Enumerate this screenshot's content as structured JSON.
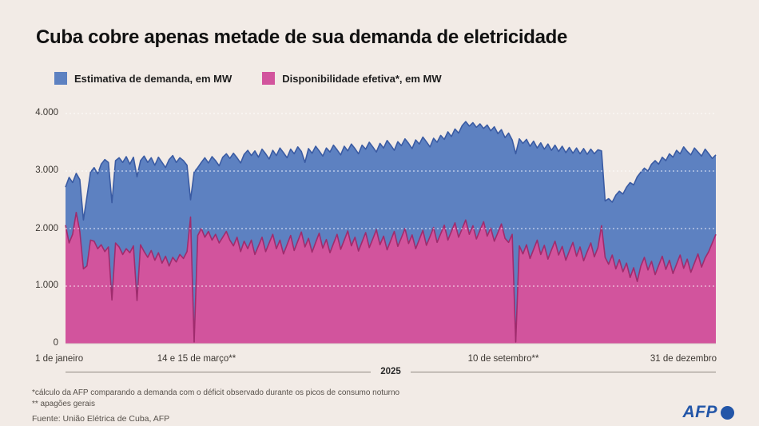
{
  "title": "Cuba cobre apenas metade de sua demanda de eletricidade",
  "legend": [
    {
      "label": "Estimativa de demanda, em MW",
      "color": "#5d81c1"
    },
    {
      "label": "Disponibilidade efetiva*, em MW",
      "color": "#d2549d"
    }
  ],
  "y_axis": {
    "ticks": [
      "4.000",
      "3.000",
      "2.000",
      "1.000",
      "0"
    ]
  },
  "x_axis": {
    "labels": {
      "jan": "1 de janeiro",
      "mar": "14 e 15 de março**",
      "sep": "10 de setembro**",
      "dez": "31 de dezembro"
    },
    "year_label": "2025"
  },
  "footnotes": [
    "*cálculo da AFP comparando a demanda com o déficit observado durante os picos de consumo noturno",
    "** apagões gerais"
  ],
  "source": "Fuente: União Elétrica de Cuba, AFP",
  "logo": {
    "text": "AFP",
    "color": "#2356a8"
  },
  "colors": {
    "background": "#f2ebe6",
    "demand_fill": "#5d81c1",
    "demand_line": "#3a5ba3",
    "availability_fill": "#d2549d",
    "availability_line": "#9f2c6d",
    "gridline": "rgba(255,255,255,0.85)",
    "baseline": "#d8d1ca"
  },
  "chart_data": {
    "type": "area",
    "title": "Cuba cobre apenas metade de sua demanda de eletricidade",
    "x_unit": "dia do ano de 2025",
    "x_start": 1,
    "x_step": 2,
    "x_end": 365,
    "ylim": [
      0,
      4000
    ],
    "grid": true,
    "legend_position": "top",
    "annotations": [
      {
        "day": 73,
        "label": "14 e 15 de março**",
        "note": "apagões gerais"
      },
      {
        "day": 253,
        "label": "10 de setembro**",
        "note": "apagões gerais"
      }
    ],
    "series": [
      {
        "name": "Estimativa de demanda, em MW",
        "values": [
          2720,
          2890,
          2800,
          2960,
          2850,
          2150,
          2550,
          2980,
          3060,
          2950,
          3120,
          3200,
          3150,
          2450,
          3180,
          3230,
          3150,
          3250,
          3120,
          3240,
          2900,
          3180,
          3260,
          3150,
          3230,
          3100,
          3240,
          3150,
          3060,
          3200,
          3270,
          3150,
          3230,
          3180,
          3100,
          2500,
          2980,
          3060,
          3150,
          3230,
          3140,
          3250,
          3180,
          3090,
          3240,
          3300,
          3220,
          3310,
          3230,
          3140,
          3290,
          3360,
          3270,
          3350,
          3240,
          3380,
          3300,
          3210,
          3360,
          3270,
          3400,
          3320,
          3230,
          3380,
          3300,
          3420,
          3340,
          3150,
          3390,
          3310,
          3430,
          3350,
          3260,
          3400,
          3330,
          3450,
          3370,
          3280,
          3430,
          3350,
          3470,
          3390,
          3300,
          3450,
          3380,
          3500,
          3420,
          3330,
          3480,
          3400,
          3530,
          3450,
          3360,
          3510,
          3440,
          3560,
          3480,
          3390,
          3540,
          3470,
          3590,
          3510,
          3420,
          3570,
          3500,
          3620,
          3550,
          3680,
          3600,
          3730,
          3660,
          3790,
          3860,
          3780,
          3840,
          3760,
          3820,
          3740,
          3800,
          3700,
          3770,
          3650,
          3720,
          3580,
          3660,
          3540,
          3300,
          3560,
          3480,
          3550,
          3430,
          3520,
          3400,
          3490,
          3380,
          3470,
          3360,
          3450,
          3340,
          3430,
          3320,
          3410,
          3310,
          3400,
          3300,
          3390,
          3290,
          3380,
          3300,
          3370,
          3350,
          2480,
          2520,
          2460,
          2580,
          2650,
          2600,
          2720,
          2800,
          2760,
          2900,
          2980,
          3050,
          3000,
          3120,
          3180,
          3120,
          3240,
          3180,
          3300,
          3240,
          3360,
          3300,
          3420,
          3340,
          3280,
          3400,
          3330,
          3260,
          3380,
          3300,
          3220,
          3280
        ]
      },
      {
        "name": "Disponibilidade efetiva*, em MW",
        "values": [
          2060,
          1750,
          1900,
          2280,
          1950,
          1300,
          1350,
          1800,
          1780,
          1650,
          1720,
          1600,
          1680,
          760,
          1750,
          1680,
          1550,
          1650,
          1580,
          1700,
          750,
          1720,
          1600,
          1500,
          1620,
          1450,
          1580,
          1400,
          1520,
          1350,
          1500,
          1420,
          1550,
          1480,
          1600,
          2200,
          30,
          1880,
          2000,
          1850,
          1950,
          1800,
          1900,
          1750,
          1850,
          1950,
          1800,
          1700,
          1850,
          1600,
          1780,
          1650,
          1800,
          1550,
          1700,
          1850,
          1600,
          1750,
          1900,
          1650,
          1800,
          1560,
          1720,
          1880,
          1620,
          1780,
          1940,
          1680,
          1830,
          1590,
          1760,
          1920,
          1660,
          1810,
          1580,
          1740,
          1900,
          1640,
          1800,
          1960,
          1700,
          1850,
          1610,
          1770,
          1930,
          1670,
          1820,
          1980,
          1720,
          1870,
          1630,
          1790,
          1950,
          1690,
          1840,
          2000,
          1740,
          1890,
          1650,
          1810,
          1970,
          1710,
          1860,
          2020,
          1760,
          1910,
          2060,
          1800,
          1950,
          2100,
          1850,
          2000,
          2150,
          1900,
          2050,
          1820,
          1970,
          2120,
          1870,
          2010,
          1780,
          1930,
          2080,
          1830,
          1760,
          1900,
          30,
          1700,
          1560,
          1720,
          1480,
          1640,
          1800,
          1550,
          1710,
          1470,
          1630,
          1780,
          1540,
          1690,
          1450,
          1610,
          1760,
          1520,
          1680,
          1440,
          1600,
          1750,
          1510,
          1670,
          2050,
          1500,
          1380,
          1540,
          1300,
          1460,
          1250,
          1400,
          1150,
          1320,
          1080,
          1350,
          1500,
          1280,
          1430,
          1200,
          1360,
          1520,
          1290,
          1450,
          1220,
          1380,
          1540,
          1310,
          1470,
          1240,
          1400,
          1560,
          1330,
          1490,
          1600,
          1750,
          1900
        ]
      }
    ]
  }
}
